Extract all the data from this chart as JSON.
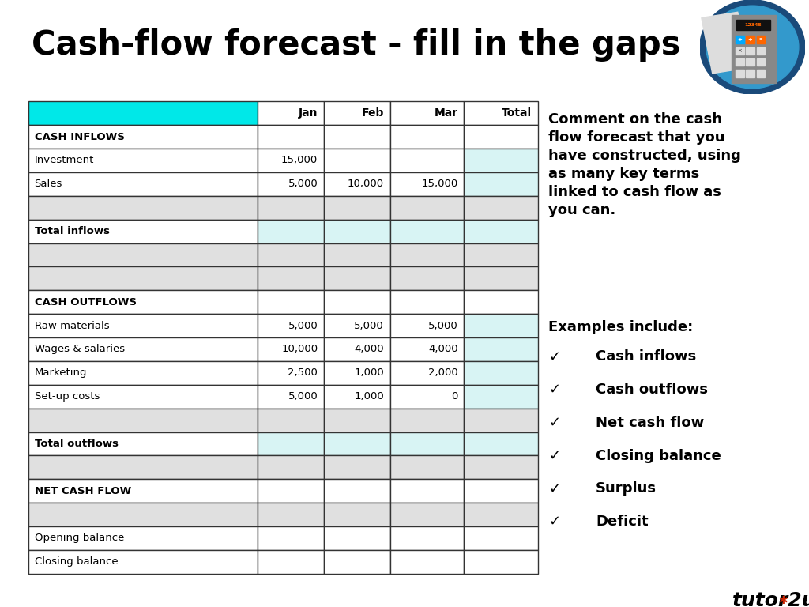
{
  "title": "Cash-flow forecast - fill in the gaps",
  "title_fontsize": 30,
  "background_color": "#ffffff",
  "header_bar_color": "#1a6fa8",
  "cyan_color": "#00e8e8",
  "light_cyan": "#d8f4f4",
  "light_gray": "#e0e0e0",
  "white": "#ffffff",
  "rows": [
    {
      "label": "CASH INFLOWS",
      "jan": "",
      "feb": "",
      "mar": "",
      "total": "",
      "style": "section"
    },
    {
      "label": "Investment",
      "jan": "15,000",
      "feb": "",
      "mar": "",
      "total": "",
      "style": "data"
    },
    {
      "label": "Sales",
      "jan": "5,000",
      "feb": "10,000",
      "mar": "15,000",
      "total": "",
      "style": "data"
    },
    {
      "label": "",
      "jan": "",
      "feb": "",
      "mar": "",
      "total": "",
      "style": "gap"
    },
    {
      "label": "Total inflows",
      "jan": "",
      "feb": "",
      "mar": "",
      "total": "",
      "style": "total"
    },
    {
      "label": "",
      "jan": "",
      "feb": "",
      "mar": "",
      "total": "",
      "style": "gap"
    },
    {
      "label": "",
      "jan": "",
      "feb": "",
      "mar": "",
      "total": "",
      "style": "gap"
    },
    {
      "label": "CASH OUTFLOWS",
      "jan": "",
      "feb": "",
      "mar": "",
      "total": "",
      "style": "section"
    },
    {
      "label": "Raw materials",
      "jan": "5,000",
      "feb": "5,000",
      "mar": "5,000",
      "total": "",
      "style": "data"
    },
    {
      "label": "Wages & salaries",
      "jan": "10,000",
      "feb": "4,000",
      "mar": "4,000",
      "total": "",
      "style": "data"
    },
    {
      "label": "Marketing",
      "jan": "2,500",
      "feb": "1,000",
      "mar": "2,000",
      "total": "",
      "style": "data"
    },
    {
      "label": "Set-up costs",
      "jan": "5,000",
      "feb": "1,000",
      "mar": "0",
      "total": "",
      "style": "data"
    },
    {
      "label": "",
      "jan": "",
      "feb": "",
      "mar": "",
      "total": "",
      "style": "gap"
    },
    {
      "label": "Total outflows",
      "jan": "",
      "feb": "",
      "mar": "",
      "total": "",
      "style": "total"
    },
    {
      "label": "",
      "jan": "",
      "feb": "",
      "mar": "",
      "total": "",
      "style": "gap"
    },
    {
      "label": "NET CASH FLOW",
      "jan": "",
      "feb": "",
      "mar": "",
      "total": "",
      "style": "section"
    },
    {
      "label": "",
      "jan": "",
      "feb": "",
      "mar": "",
      "total": "",
      "style": "gap"
    },
    {
      "label": "Opening balance",
      "jan": "",
      "feb": "",
      "mar": "",
      "total": "",
      "style": "data_plain"
    },
    {
      "label": "Closing balance",
      "jan": "",
      "feb": "",
      "mar": "",
      "total": "",
      "style": "data_plain"
    }
  ],
  "comment_text": "Comment on the cash\nflow forecast that you\nhave constructed, using\nas many key terms\nlinked to cash flow as\nyou can.",
  "examples_header": "Examples include:",
  "checkmark_items": [
    "Cash inflows",
    "Cash outflows",
    "Net cash flow",
    "Closing balance",
    "Surplus",
    "Deficit"
  ]
}
